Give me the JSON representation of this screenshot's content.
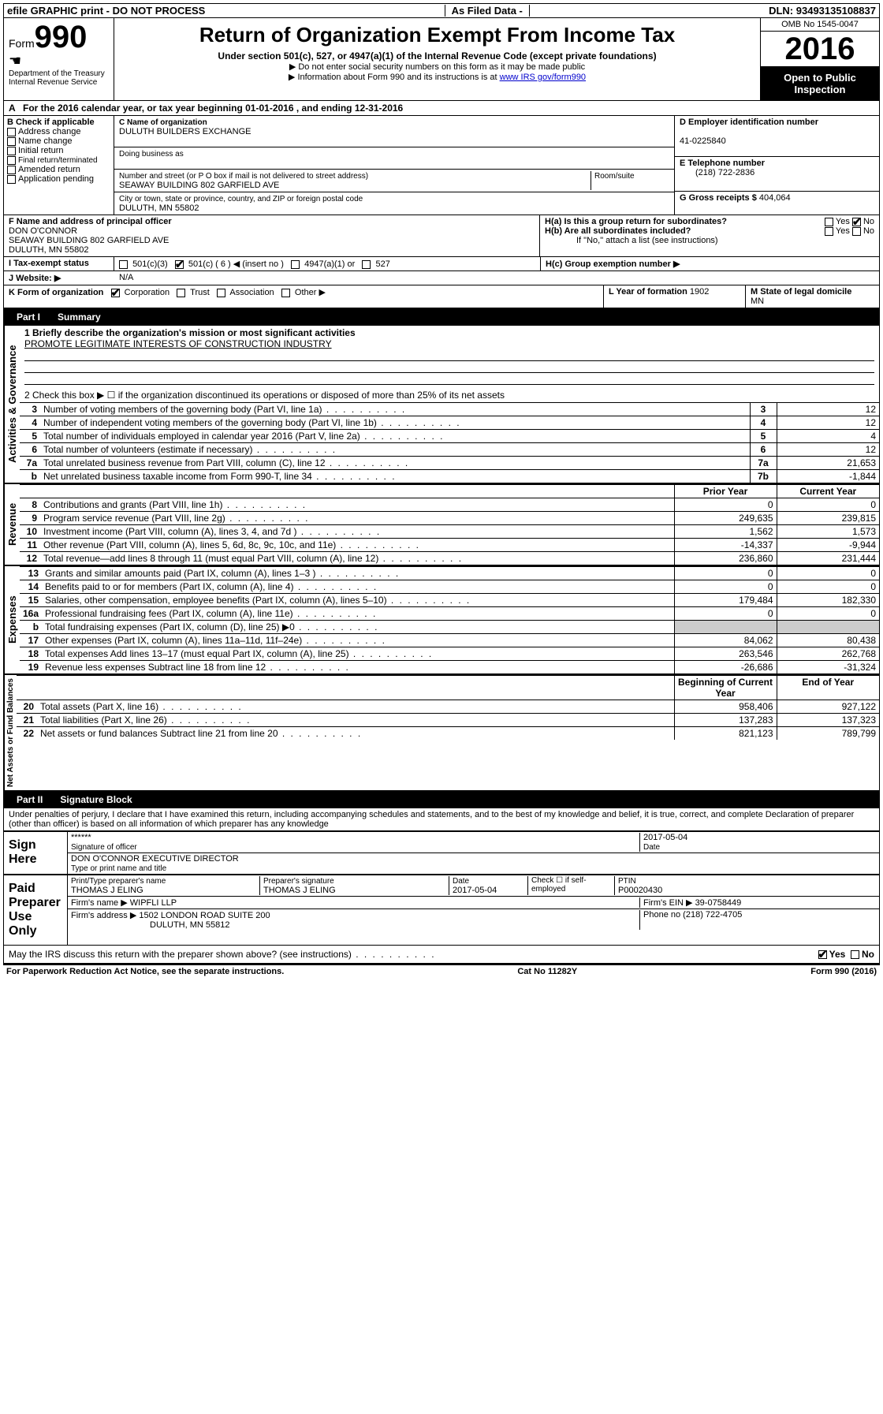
{
  "topbar": {
    "left": "efile GRAPHIC print - DO NOT PROCESS",
    "mid": "As Filed Data -",
    "right": "DLN: 93493135108837"
  },
  "header": {
    "form_prefix": "Form",
    "form_no": "990",
    "dept1": "Department of the Treasury",
    "dept2": "Internal Revenue Service",
    "title": "Return of Organization Exempt From Income Tax",
    "subtitle": "Under section 501(c), 527, or 4947(a)(1) of the Internal Revenue Code (except private foundations)",
    "hint1": "▶ Do not enter social security numbers on this form as it may be made public",
    "hint2_pre": "▶ Information about Form 990 and its instructions is at ",
    "hint2_link": "www IRS gov/form990",
    "omb": "OMB No 1545-0047",
    "year": "2016",
    "open": "Open to Public Inspection"
  },
  "row_a": {
    "label": "A",
    "text": "For the 2016 calendar year, or tax year beginning 01-01-2016   , and ending 12-31-2016"
  },
  "b": {
    "heading": "B Check if applicable",
    "items": [
      "Address change",
      "Name change",
      "Initial return",
      "Final return/terminated",
      "Amended return",
      "Application pending"
    ]
  },
  "c": {
    "name_label": "C Name of organization",
    "name": "DULUTH BUILDERS EXCHANGE",
    "dba_label": "Doing business as",
    "dba": "",
    "street_label": "Number and street (or P O  box if mail is not delivered to street address)",
    "room_label": "Room/suite",
    "street": "SEAWAY BUILDING 802 GARFIELD AVE",
    "city_label": "City or town, state or province, country, and ZIP or foreign postal code",
    "city": "DULUTH, MN  55802"
  },
  "d": {
    "ein_label": "D Employer identification number",
    "ein": "41-0225840",
    "phone_label": "E Telephone number",
    "phone": "(218) 722-2836",
    "gross_label": "G Gross receipts $",
    "gross": "404,064"
  },
  "f": {
    "label": "F  Name and address of principal officer",
    "name": "DON O'CONNOR",
    "street": "SEAWAY BUILDING 802 GARFIELD AVE",
    "city": "DULUTH, MN  55802"
  },
  "h": {
    "a_label": "H(a)  Is this a group return for subordinates?",
    "b_label": "H(b)  Are all subordinates included?",
    "b_note": "If \"No,\" attach a list  (see instructions)",
    "c_label": "H(c)  Group exemption number ▶"
  },
  "i": {
    "label": "I   Tax-exempt status",
    "opt1": "501(c)(3)",
    "opt2": "501(c) ( 6 ) ◀ (insert no )",
    "opt3": "4947(a)(1) or",
    "opt4": "527"
  },
  "j": {
    "label": "J   Website: ▶",
    "value": "N/A"
  },
  "k": {
    "label": "K Form of organization",
    "opts": [
      "Corporation",
      "Trust",
      "Association",
      "Other ▶"
    ],
    "l_label": "L Year of formation",
    "l_val": "1902",
    "m_label": "M State of legal domicile",
    "m_val": "MN"
  },
  "part1": {
    "tab": "Part I",
    "title": "Summary",
    "line1_label": "1 Briefly describe the organization's mission or most significant activities",
    "line1_val": "PROMOTE LEGITIMATE INTERESTS OF CONSTRUCTION INDUSTRY",
    "line2": "2  Check this box ▶ ☐  if the organization discontinued its operations or disposed of more than 25% of its net assets",
    "gov_lines": [
      {
        "n": "3",
        "t": "Number of voting members of the governing body (Part VI, line 1a)",
        "ln": "3",
        "v": "12"
      },
      {
        "n": "4",
        "t": "Number of independent voting members of the governing body (Part VI, line 1b)",
        "ln": "4",
        "v": "12"
      },
      {
        "n": "5",
        "t": "Total number of individuals employed in calendar year 2016 (Part V, line 2a)",
        "ln": "5",
        "v": "4"
      },
      {
        "n": "6",
        "t": "Total number of volunteers (estimate if necessary)",
        "ln": "6",
        "v": "12"
      },
      {
        "n": "7a",
        "t": "Total unrelated business revenue from Part VIII, column (C), line 12",
        "ln": "7a",
        "v": "21,653"
      },
      {
        "n": "b",
        "t": "Net unrelated business taxable income from Form 990-T, line 34",
        "ln": "7b",
        "v": "-1,844"
      }
    ],
    "col_headers": {
      "prior": "Prior Year",
      "current": "Current Year"
    },
    "rev_lines": [
      {
        "n": "8",
        "t": "Contributions and grants (Part VIII, line 1h)",
        "p": "0",
        "c": "0"
      },
      {
        "n": "9",
        "t": "Program service revenue (Part VIII, line 2g)",
        "p": "249,635",
        "c": "239,815"
      },
      {
        "n": "10",
        "t": "Investment income (Part VIII, column (A), lines 3, 4, and 7d )",
        "p": "1,562",
        "c": "1,573"
      },
      {
        "n": "11",
        "t": "Other revenue (Part VIII, column (A), lines 5, 6d, 8c, 9c, 10c, and 11e)",
        "p": "-14,337",
        "c": "-9,944"
      },
      {
        "n": "12",
        "t": "Total revenue—add lines 8 through 11 (must equal Part VIII, column (A), line 12)",
        "p": "236,860",
        "c": "231,444"
      }
    ],
    "exp_lines": [
      {
        "n": "13",
        "t": "Grants and similar amounts paid (Part IX, column (A), lines 1–3 )",
        "p": "0",
        "c": "0"
      },
      {
        "n": "14",
        "t": "Benefits paid to or for members (Part IX, column (A), line 4)",
        "p": "0",
        "c": "0"
      },
      {
        "n": "15",
        "t": "Salaries, other compensation, employee benefits (Part IX, column (A), lines 5–10)",
        "p": "179,484",
        "c": "182,330"
      },
      {
        "n": "16a",
        "t": "Professional fundraising fees (Part IX, column (A), line 11e)",
        "p": "0",
        "c": "0"
      },
      {
        "n": "b",
        "t": "Total fundraising expenses (Part IX, column (D), line 25) ▶0",
        "p": "",
        "c": ""
      },
      {
        "n": "17",
        "t": "Other expenses (Part IX, column (A), lines 11a–11d, 11f–24e)",
        "p": "84,062",
        "c": "80,438"
      },
      {
        "n": "18",
        "t": "Total expenses  Add lines 13–17 (must equal Part IX, column (A), line 25)",
        "p": "263,546",
        "c": "262,768"
      },
      {
        "n": "19",
        "t": "Revenue less expenses  Subtract line 18 from line 12",
        "p": "-26,686",
        "c": "-31,324"
      }
    ],
    "net_headers": {
      "begin": "Beginning of Current Year",
      "end": "End of Year"
    },
    "net_lines": [
      {
        "n": "20",
        "t": "Total assets (Part X, line 16)",
        "p": "958,406",
        "c": "927,122"
      },
      {
        "n": "21",
        "t": "Total liabilities (Part X, line 26)",
        "p": "137,283",
        "c": "137,323"
      },
      {
        "n": "22",
        "t": "Net assets or fund balances  Subtract line 21 from line 20",
        "p": "821,123",
        "c": "789,799"
      }
    ],
    "side_labels": {
      "gov": "Activities & Governance",
      "rev": "Revenue",
      "exp": "Expenses",
      "net": "Net Assets or Fund Balances"
    }
  },
  "part2": {
    "tab": "Part II",
    "title": "Signature Block",
    "perjury": "Under penalties of perjury, I declare that I have examined this return, including accompanying schedules and statements, and to the best of my knowledge and belief, it is true, correct, and complete  Declaration of preparer (other than officer) is based on all information of which preparer has any knowledge",
    "sign_here": "Sign Here",
    "stars": "******",
    "sig_officer_label": "Signature of officer",
    "date_label": "Date",
    "sig_date": "2017-05-04",
    "officer_name": "DON O'CONNOR  EXECUTIVE DIRECTOR",
    "type_label": "Type or print name and title",
    "paid": "Paid Preparer Use Only",
    "prep_name_label": "Print/Type preparer's name",
    "prep_name": "THOMAS J ELING",
    "prep_sig_label": "Preparer's signature",
    "prep_sig": "THOMAS J ELING",
    "prep_date": "2017-05-04",
    "check_self": "Check ☐ if self-employed",
    "ptin_label": "PTIN",
    "ptin": "P00020430",
    "firm_name_label": "Firm's name    ▶",
    "firm_name": "WIPFLI LLP",
    "firm_ein_label": "Firm's EIN ▶",
    "firm_ein": "39-0758449",
    "firm_addr_label": "Firm's address ▶",
    "firm_addr": "1502 LONDON ROAD SUITE 200",
    "firm_city": "DULUTH, MN  55812",
    "firm_phone_label": "Phone no",
    "firm_phone": "(218) 722-4705",
    "discuss": "May the IRS discuss this return with the preparer shown above? (see instructions)",
    "discuss_yes": "Yes",
    "discuss_no": "No"
  },
  "footer": {
    "left": "For Paperwork Reduction Act Notice, see the separate instructions.",
    "mid": "Cat  No  11282Y",
    "right": "Form 990 (2016)"
  }
}
